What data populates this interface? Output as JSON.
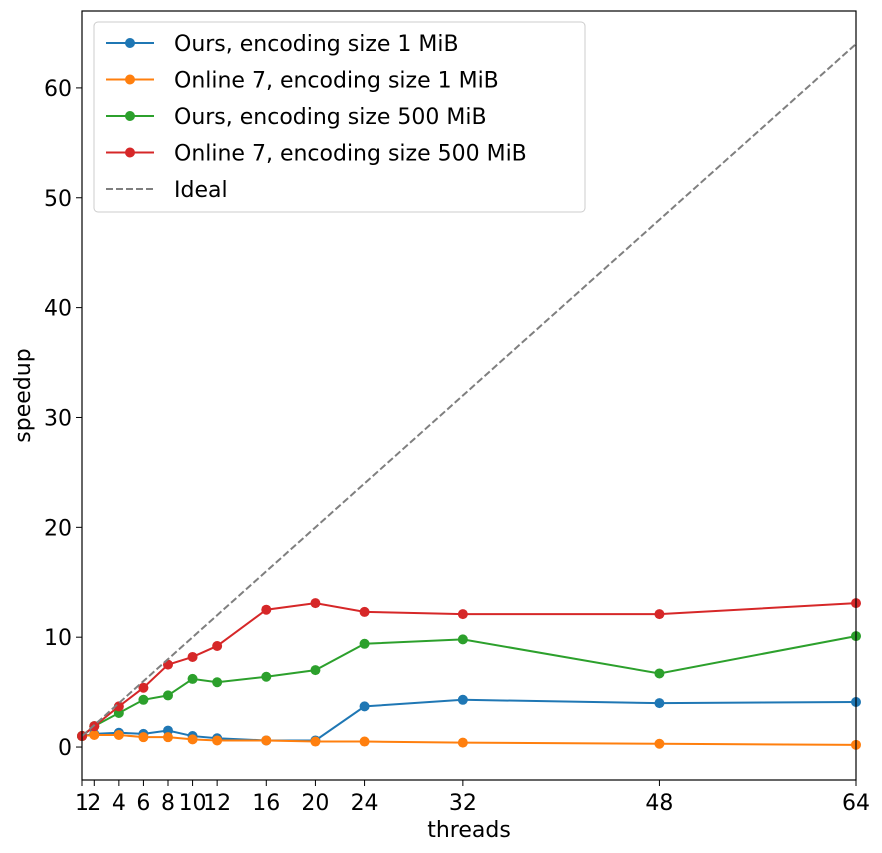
{
  "chart_data": {
    "type": "line",
    "title": "",
    "xlabel": "threads",
    "ylabel": "speedup",
    "xlim": [
      1,
      64
    ],
    "ylim": [
      -3,
      67
    ],
    "grid": false,
    "legend_position": "upper-left",
    "x": [
      1,
      2,
      4,
      6,
      8,
      10,
      12,
      16,
      20,
      24,
      32,
      48,
      64
    ],
    "x_tick_labels": [
      "1",
      "2",
      "4",
      "6",
      "8",
      "10",
      "12",
      "16",
      "20",
      "24",
      "32",
      "48",
      "64"
    ],
    "y_ticks": [
      0,
      10,
      20,
      30,
      40,
      50,
      60
    ],
    "y_tick_labels": [
      "0",
      "10",
      "20",
      "30",
      "40",
      "50",
      "60"
    ],
    "series": [
      {
        "name": "Ours, encoding size 1 MiB",
        "color": "#1f77b4",
        "style": "solid-marker",
        "values": [
          1.0,
          1.2,
          1.3,
          1.2,
          1.5,
          1.0,
          0.8,
          0.6,
          0.6,
          3.7,
          4.3,
          4.0,
          4.1
        ]
      },
      {
        "name": "Online 7, encoding size 1 MiB",
        "color": "#ff7f0e",
        "style": "solid-marker",
        "values": [
          1.0,
          1.1,
          1.1,
          0.9,
          0.9,
          0.7,
          0.6,
          0.6,
          0.5,
          0.5,
          0.4,
          0.3,
          0.2
        ]
      },
      {
        "name": "Ours, encoding size 500 MiB",
        "color": "#2ca02c",
        "style": "solid-marker",
        "values": [
          1.0,
          1.9,
          3.1,
          4.3,
          4.7,
          6.2,
          5.9,
          6.4,
          7.0,
          9.4,
          9.8,
          6.7,
          10.1
        ]
      },
      {
        "name": "Online 7, encoding size 500 MiB",
        "color": "#d62728",
        "style": "solid-marker",
        "values": [
          1.0,
          1.9,
          3.7,
          5.4,
          7.5,
          8.2,
          9.2,
          12.5,
          13.1,
          12.3,
          12.1,
          12.1,
          13.1
        ]
      },
      {
        "name": "Ideal",
        "color": "#7f7f7f",
        "style": "dashed",
        "values": [
          1,
          2,
          4,
          6,
          8,
          10,
          12,
          16,
          20,
          24,
          32,
          48,
          64
        ]
      }
    ]
  }
}
